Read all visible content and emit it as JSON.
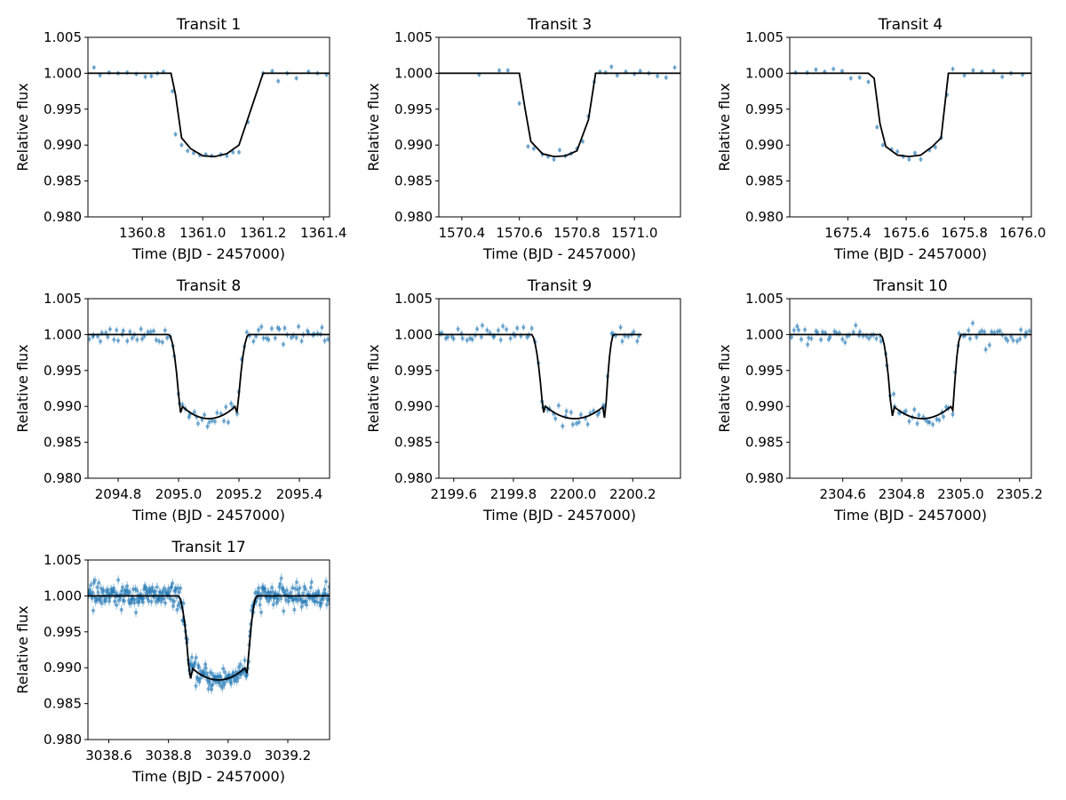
{
  "figure": {
    "colors": {
      "data": "#1f77b4",
      "model": "#000000",
      "axes": "#000000"
    }
  },
  "chart_data": [
    {
      "type": "scatter",
      "title": "Transit 1",
      "xlabel": "Time (BJD - 2457000)",
      "ylabel": "Relative flux",
      "xlim": [
        1360.62,
        1361.42
      ],
      "ylim": [
        0.98,
        1.005
      ],
      "xticks": [
        1360.8,
        1361.0,
        1361.2,
        1361.4
      ],
      "xtick_labels": [
        "1360.8",
        "1361.0",
        "1361.2",
        "1361.4"
      ],
      "yticks": [
        0.98,
        0.985,
        0.99,
        0.995,
        1.0,
        1.005
      ],
      "ytick_labels": [
        "0.980",
        "0.985",
        "0.990",
        "0.995",
        "1.000",
        "1.005"
      ],
      "grid": false,
      "transit": {
        "t1": 1360.897,
        "t2": 1360.932,
        "t3": 1361.12,
        "t4": 1361.2,
        "depth": 0.0117
      },
      "series": [
        {
          "kind": "model",
          "x": [
            1360.62,
            1360.895,
            1360.91,
            1360.93,
            1360.96,
            1361.0,
            1361.04,
            1361.08,
            1361.12,
            1361.16,
            1361.2,
            1361.42
          ],
          "y": [
            1.0,
            1.0,
            0.997,
            0.991,
            0.9895,
            0.9885,
            0.9884,
            0.9888,
            0.99,
            0.995,
            1.0,
            1.0
          ]
        },
        {
          "kind": "data",
          "x": [
            1360.64,
            1360.66,
            1360.69,
            1360.72,
            1360.75,
            1360.78,
            1360.81,
            1360.83,
            1360.85,
            1360.87,
            1360.9,
            1360.91,
            1360.93,
            1360.95,
            1360.97,
            1360.99,
            1361.01,
            1361.03,
            1361.06,
            1361.08,
            1361.1,
            1361.12,
            1361.15,
            1361.2,
            1361.23,
            1361.25,
            1361.28,
            1361.31,
            1361.35,
            1361.38,
            1361.41
          ],
          "y": [
            1.0008,
            0.9997,
            1.0001,
            1.0,
            1.0001,
            0.9999,
            0.9995,
            0.9996,
            1.0,
            1.0002,
            0.9975,
            0.9915,
            0.99,
            0.9892,
            0.9889,
            0.9886,
            0.9887,
            0.9885,
            0.9887,
            0.9885,
            0.989,
            0.989,
            0.9932,
            1.0,
            1.0003,
            0.9989,
            1.0,
            0.9993,
            1.0002,
            1.0,
            0.9998
          ]
        }
      ]
    },
    {
      "type": "scatter",
      "title": "Transit 3",
      "xlabel": "Time (BJD - 2457000)",
      "ylabel": "Relative flux",
      "xlim": [
        1570.32,
        1571.16
      ],
      "ylim": [
        0.98,
        1.005
      ],
      "xticks": [
        1570.4,
        1570.6,
        1570.8,
        1571.0
      ],
      "xtick_labels": [
        "1570.4",
        "1570.6",
        "1570.8",
        "1571.0"
      ],
      "yticks": [
        0.98,
        0.985,
        0.99,
        0.995,
        1.0,
        1.005
      ],
      "ytick_labels": [
        "0.980",
        "0.985",
        "0.990",
        "0.995",
        "1.000",
        "1.005"
      ],
      "grid": false,
      "series": [
        {
          "kind": "model",
          "x": [
            1570.32,
            1570.6,
            1570.62,
            1570.64,
            1570.68,
            1570.72,
            1570.76,
            1570.8,
            1570.84,
            1570.865,
            1571.16
          ],
          "y": [
            1.0,
            1.0,
            0.995,
            0.9905,
            0.9888,
            0.9884,
            0.9885,
            0.9892,
            0.9935,
            1.0,
            1.0
          ]
        },
        {
          "kind": "data",
          "x": [
            1570.46,
            1570.53,
            1570.56,
            1570.6,
            1570.63,
            1570.65,
            1570.68,
            1570.7,
            1570.72,
            1570.74,
            1570.76,
            1570.78,
            1570.8,
            1570.82,
            1570.84,
            1570.86,
            1570.88,
            1570.9,
            1570.92,
            1570.94,
            1570.97,
            1571.0,
            1571.02,
            1571.05,
            1571.08,
            1571.11,
            1571.14
          ],
          "y": [
            0.9998,
            1.0004,
            1.0004,
            0.9958,
            0.9898,
            0.9895,
            0.9887,
            0.9884,
            0.988,
            0.9893,
            0.9885,
            0.9888,
            0.9895,
            0.9905,
            0.994,
            0.9988,
            1.0002,
            1.0001,
            1.0009,
            0.9997,
            1.0002,
            0.9999,
            1.0003,
            1.0,
            0.9996,
            0.9994,
            1.0008
          ]
        }
      ]
    },
    {
      "type": "scatter",
      "title": "Transit 4",
      "xlabel": "Time (BJD - 2457000)",
      "ylabel": "Relative flux",
      "xlim": [
        1675.2,
        1676.03
      ],
      "ylim": [
        0.98,
        1.005
      ],
      "xticks": [
        1675.4,
        1675.6,
        1675.8,
        1676.0
      ],
      "xtick_labels": [
        "1675.4",
        "1675.6",
        "1675.8",
        "1676.0"
      ],
      "yticks": [
        0.98,
        0.985,
        0.99,
        0.995,
        1.0,
        1.005
      ],
      "ytick_labels": [
        "0.980",
        "0.985",
        "0.990",
        "0.995",
        "1.000",
        "1.005"
      ],
      "grid": false,
      "series": [
        {
          "kind": "model",
          "x": [
            1675.2,
            1675.47,
            1675.49,
            1675.51,
            1675.53,
            1675.57,
            1675.61,
            1675.65,
            1675.69,
            1675.72,
            1675.745,
            1676.03
          ],
          "y": [
            1.0,
            1.0,
            0.9993,
            0.993,
            0.9898,
            0.9886,
            0.9884,
            0.9886,
            0.9898,
            0.991,
            1.0,
            1.0
          ]
        },
        {
          "kind": "data",
          "x": [
            1675.22,
            1675.26,
            1675.29,
            1675.32,
            1675.35,
            1675.38,
            1675.41,
            1675.44,
            1675.47,
            1675.5,
            1675.52,
            1675.55,
            1675.57,
            1675.59,
            1675.61,
            1675.63,
            1675.65,
            1675.68,
            1675.7,
            1675.72,
            1675.74,
            1675.76,
            1675.8,
            1675.83,
            1675.86,
            1675.9,
            1675.93,
            1675.96,
            1676.0
          ],
          "y": [
            1.0001,
            1.0001,
            1.0005,
            1.0002,
            1.0006,
            1.0003,
            0.9993,
            0.9994,
            0.9988,
            0.9925,
            0.99,
            0.9894,
            0.9891,
            0.9884,
            0.988,
            0.9889,
            0.988,
            0.9893,
            0.9897,
            0.991,
            0.997,
            1.0006,
            0.9997,
            1.0004,
            1.0002,
            1.0003,
            0.9995,
            1.0,
            0.9998
          ]
        }
      ]
    },
    {
      "type": "scatter",
      "title": "Transit 8",
      "xlabel": "Time (BJD - 2457000)",
      "ylabel": "Relative flux",
      "xlim": [
        2094.7,
        2095.5
      ],
      "ylim": [
        0.98,
        1.005
      ],
      "xticks": [
        2094.8,
        2095.0,
        2095.2,
        2095.4
      ],
      "xtick_labels": [
        "2094.8",
        "2095.0",
        "2095.2",
        "2095.4"
      ],
      "yticks": [
        0.98,
        0.985,
        0.99,
        0.995,
        1.0,
        1.005
      ],
      "ytick_labels": [
        "0.980",
        "0.985",
        "0.990",
        "0.995",
        "1.000",
        "1.005"
      ],
      "grid": false,
      "transit": {
        "t1": 2094.97,
        "t2": 2095.01,
        "t3": 2095.19,
        "t4": 2095.23,
        "depth": 0.0117
      }
    },
    {
      "type": "scatter",
      "title": "Transit 9",
      "xlabel": "Time (BJD - 2457000)",
      "ylabel": "Relative flux",
      "xlim": [
        2199.55,
        2200.36
      ],
      "ylim": [
        0.98,
        1.005
      ],
      "xticks": [
        2199.6,
        2199.8,
        2200.0,
        2200.2
      ],
      "xtick_labels": [
        "2199.6",
        "2199.8",
        "2200.0",
        "2200.2"
      ],
      "yticks": [
        0.98,
        0.985,
        0.99,
        0.995,
        1.0,
        1.005
      ],
      "ytick_labels": [
        "0.980",
        "0.985",
        "0.990",
        "0.995",
        "1.000",
        "1.005"
      ],
      "grid": false,
      "transit": {
        "t1": 2199.862,
        "t2": 2199.905,
        "t3": 2200.105,
        "t4": 2200.135,
        "depth": 0.0117
      }
    },
    {
      "type": "scatter",
      "title": "Transit 10",
      "xlabel": "Time (BJD - 2457000)",
      "ylabel": "Relative flux",
      "xlim": [
        2304.42,
        2305.24
      ],
      "ylim": [
        0.98,
        1.005
      ],
      "xticks": [
        2304.6,
        2304.8,
        2305.0,
        2305.2
      ],
      "xtick_labels": [
        "2304.6",
        "2304.8",
        "2305.0",
        "2305.2"
      ],
      "yticks": [
        0.98,
        0.985,
        0.99,
        0.995,
        1.0,
        1.005
      ],
      "ytick_labels": [
        "0.980",
        "0.985",
        "0.990",
        "0.995",
        "1.000",
        "1.005"
      ],
      "grid": false,
      "transit": {
        "t1": 2304.73,
        "t2": 2304.77,
        "t3": 2304.97,
        "t4": 2305.0,
        "depth": 0.0117
      }
    },
    {
      "type": "scatter",
      "title": "Transit 17",
      "xlabel": "Time (BJD - 2457000)",
      "ylabel": "Relative flux",
      "xlim": [
        2038.5,
        3039.34
      ],
      "ylim": [
        0.98,
        1.005
      ],
      "xticks": [
        3038.6,
        3038.8,
        3039.0,
        3039.2
      ],
      "xtick_labels": [
        "3038.6",
        "3038.8",
        "3039.0",
        "3039.2"
      ],
      "yticks": [
        0.98,
        0.985,
        0.99,
        0.995,
        1.0,
        1.005
      ],
      "ytick_labels": [
        "0.980",
        "0.985",
        "0.990",
        "0.995",
        "1.000",
        "1.005"
      ],
      "grid": false,
      "transit": {
        "t1": 3038.835,
        "t2": 3038.875,
        "t3": 3039.06,
        "t4": 3039.095,
        "depth": 0.0117
      }
    }
  ]
}
